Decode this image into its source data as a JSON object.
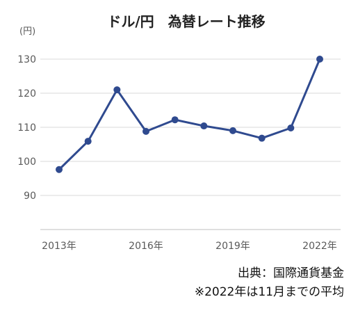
{
  "chart_data": {
    "type": "line",
    "title": "ドル/円　為替レート推移",
    "unit_label": "(円)",
    "x": [
      2013,
      2014,
      2015,
      2016,
      2017,
      2018,
      2019,
      2020,
      2021,
      2022
    ],
    "xtick_labels": [
      "2013年",
      "2016年",
      "2019年",
      "2022年"
    ],
    "xtick_values": [
      2013,
      2016,
      2019,
      2022
    ],
    "yticks": [
      90,
      100,
      110,
      120,
      130
    ],
    "ylim": [
      80,
      130
    ],
    "series": [
      {
        "values": [
          97.6,
          105.9,
          121.0,
          108.8,
          112.2,
          110.4,
          109.0,
          106.8,
          109.8,
          130.0
        ]
      }
    ],
    "grid": "horizontal",
    "legend": "none",
    "colors": {
      "line": "#2F4A8F",
      "grid": "#D9D9D9",
      "axis": "#BFBFBF",
      "tick_text": "#595959"
    }
  },
  "notes": {
    "source": "出典：国際通貨基金",
    "footnote": "※2022年は11月までの平均"
  }
}
